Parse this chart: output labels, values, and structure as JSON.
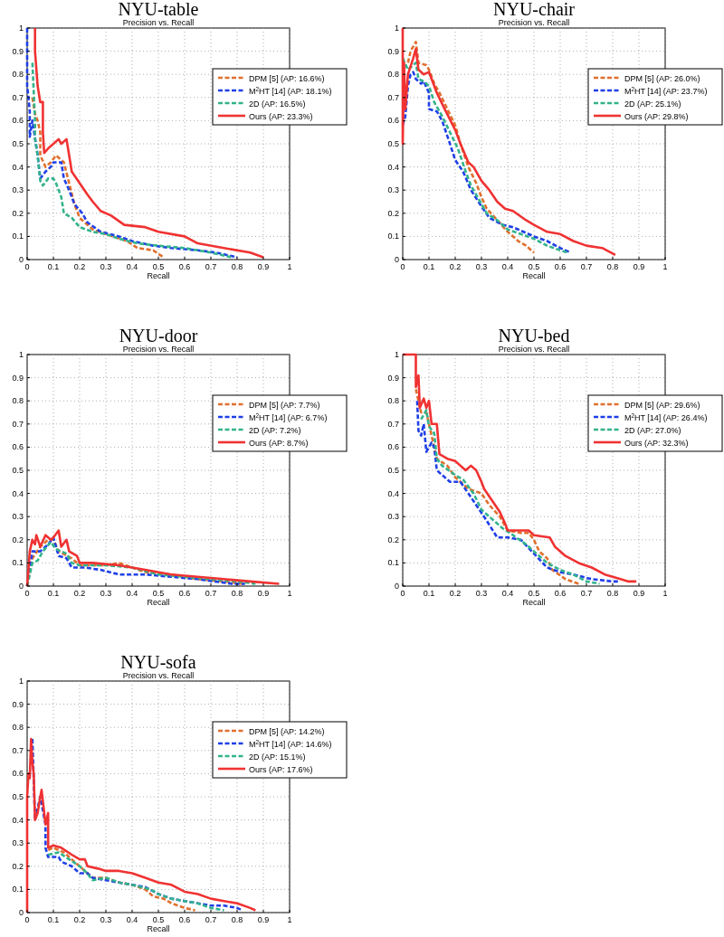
{
  "chart_data": [
    {
      "type": "line",
      "title": "NYU-table",
      "subtitle": "Precision vs. Recall",
      "xlabel": "Recall",
      "xlim": [
        0,
        1
      ],
      "ylim": [
        0,
        1
      ],
      "xticks": [
        0,
        0.1,
        0.2,
        0.3,
        0.4,
        0.5,
        0.6,
        0.7,
        0.8,
        0.9,
        1
      ],
      "yticks": [
        0,
        0.1,
        0.2,
        0.3,
        0.4,
        0.5,
        0.6,
        0.7,
        0.8,
        0.9,
        1
      ],
      "grid": true,
      "legend": "top right",
      "marker": "none",
      "series": [
        {
          "name": "DPM [5] (AP: 16.6%)",
          "color": "#e0702e",
          "line_style": "dashed",
          "x": [
            0.02,
            0.03,
            0.04,
            0.05,
            0.05,
            0.07,
            0.09,
            0.11,
            0.13,
            0.14,
            0.16,
            0.18,
            0.2,
            0.25,
            0.3,
            0.38,
            0.42,
            0.48,
            0.52
          ],
          "values": [
            0.7,
            0.63,
            0.6,
            0.55,
            0.45,
            0.4,
            0.42,
            0.45,
            0.43,
            0.42,
            0.33,
            0.24,
            0.18,
            0.13,
            0.11,
            0.08,
            0.05,
            0.04,
            0.01
          ]
        },
        {
          "name": "M$^{2}$HT [14] (AP: 18.1%)",
          "color": "#1f3fe6",
          "line_style": "dashed",
          "x": [
            0,
            0,
            0.005,
            0.01,
            0.01,
            0.02,
            0.04,
            0.05,
            0.07,
            0.09,
            0.1,
            0.13,
            0.14,
            0.16,
            0.18,
            0.21,
            0.23,
            0.28,
            0.35,
            0.4,
            0.48,
            0.55,
            0.65,
            0.72,
            0.8
          ],
          "values": [
            1,
            0.75,
            0.7,
            0.64,
            0.53,
            0.6,
            0.45,
            0.35,
            0.38,
            0.4,
            0.42,
            0.42,
            0.35,
            0.3,
            0.24,
            0.2,
            0.16,
            0.12,
            0.1,
            0.08,
            0.06,
            0.05,
            0.04,
            0.03,
            0.01
          ]
        },
        {
          "name": "2D (AP: 16.5%)",
          "color": "#33b38c",
          "line_style": "dashed",
          "x": [
            0.02,
            0.03,
            0.03,
            0.04,
            0.05,
            0.06,
            0.08,
            0.1,
            0.11,
            0.13,
            0.14,
            0.17,
            0.2,
            0.25,
            0.3,
            0.35,
            0.42,
            0.5,
            0.6,
            0.7,
            0.78
          ],
          "values": [
            0.85,
            0.6,
            0.52,
            0.45,
            0.34,
            0.32,
            0.35,
            0.35,
            0.33,
            0.27,
            0.2,
            0.18,
            0.14,
            0.12,
            0.11,
            0.09,
            0.07,
            0.06,
            0.05,
            0.03,
            0.01
          ]
        },
        {
          "name": "Ours (AP: 23.3%)",
          "color": "#f03232",
          "line_style": "solid",
          "x": [
            0.03,
            0.03,
            0.04,
            0.05,
            0.06,
            0.06,
            0.065,
            0.08,
            0.1,
            0.12,
            0.13,
            0.15,
            0.16,
            0.17,
            0.2,
            0.23,
            0.25,
            0.28,
            0.32,
            0.37,
            0.45,
            0.5,
            0.6,
            0.65,
            0.75,
            0.85,
            0.9
          ],
          "values": [
            1,
            0.9,
            0.75,
            0.68,
            0.68,
            0.55,
            0.46,
            0.48,
            0.5,
            0.52,
            0.5,
            0.52,
            0.45,
            0.38,
            0.33,
            0.28,
            0.25,
            0.21,
            0.19,
            0.15,
            0.14,
            0.12,
            0.1,
            0.07,
            0.05,
            0.03,
            0.01
          ]
        }
      ]
    },
    {
      "type": "line",
      "title": "NYU-chair",
      "subtitle": "Precision vs. Recall",
      "xlabel": "Recall",
      "xlim": [
        0,
        1
      ],
      "ylim": [
        0,
        1
      ],
      "xticks": [
        0,
        0.1,
        0.2,
        0.3,
        0.4,
        0.5,
        0.6,
        0.7,
        0.8,
        0.9,
        1
      ],
      "yticks": [
        0,
        0.1,
        0.2,
        0.3,
        0.4,
        0.5,
        0.6,
        0.7,
        0.8,
        0.9,
        1
      ],
      "grid": true,
      "legend": "top right",
      "marker": "none",
      "series": [
        {
          "name": "DPM [5] (AP: 26.0%)",
          "color": "#e0702e",
          "line_style": "dashed",
          "x": [
            0.02,
            0.03,
            0.05,
            0.06,
            0.09,
            0.1,
            0.12,
            0.14,
            0.17,
            0.2,
            0.22,
            0.25,
            0.28,
            0.3,
            0.32,
            0.36,
            0.4,
            0.44,
            0.47,
            0.5
          ],
          "values": [
            0.85,
            0.9,
            0.94,
            0.85,
            0.84,
            0.82,
            0.76,
            0.72,
            0.65,
            0.58,
            0.5,
            0.4,
            0.33,
            0.27,
            0.22,
            0.17,
            0.12,
            0.08,
            0.06,
            0.03
          ]
        },
        {
          "name": "M$^{2}$HT [14] (AP: 23.7%)",
          "color": "#1f3fe6",
          "line_style": "dashed",
          "x": [
            0,
            0.01,
            0.02,
            0.03,
            0.04,
            0.05,
            0.07,
            0.08,
            0.1,
            0.1,
            0.13,
            0.15,
            0.18,
            0.2,
            0.23,
            0.26,
            0.3,
            0.33,
            0.38,
            0.42,
            0.5,
            0.55,
            0.6,
            0.64
          ],
          "values": [
            0.58,
            0.62,
            0.75,
            0.8,
            0.81,
            0.78,
            0.76,
            0.77,
            0.72,
            0.65,
            0.64,
            0.6,
            0.5,
            0.43,
            0.38,
            0.3,
            0.23,
            0.18,
            0.15,
            0.14,
            0.1,
            0.08,
            0.05,
            0.03
          ]
        },
        {
          "name": "2D (AP: 25.1%)",
          "color": "#33b38c",
          "line_style": "dashed",
          "x": [
            0,
            0.02,
            0.04,
            0.05,
            0.06,
            0.08,
            0.1,
            0.12,
            0.15,
            0.18,
            0.21,
            0.24,
            0.26,
            0.29,
            0.32,
            0.36,
            0.4,
            0.45,
            0.5,
            0.55,
            0.6,
            0.63
          ],
          "values": [
            0.87,
            0.82,
            0.84,
            0.85,
            0.78,
            0.77,
            0.75,
            0.68,
            0.62,
            0.55,
            0.48,
            0.38,
            0.32,
            0.26,
            0.2,
            0.17,
            0.13,
            0.11,
            0.09,
            0.06,
            0.04,
            0.03
          ]
        },
        {
          "name": "Ours (AP: 29.8%)",
          "color": "#f03232",
          "line_style": "solid",
          "x": [
            0,
            0,
            0.005,
            0.01,
            0.02,
            0.04,
            0.05,
            0.06,
            0.08,
            0.1,
            0.11,
            0.13,
            0.16,
            0.2,
            0.22,
            0.25,
            0.27,
            0.3,
            0.33,
            0.36,
            0.39,
            0.42,
            0.47,
            0.5,
            0.55,
            0.6,
            0.65,
            0.7,
            0.76,
            0.81
          ],
          "values": [
            1,
            0.5,
            0.85,
            0.65,
            0.8,
            0.87,
            0.91,
            0.82,
            0.8,
            0.81,
            0.78,
            0.72,
            0.65,
            0.56,
            0.5,
            0.42,
            0.4,
            0.34,
            0.3,
            0.25,
            0.22,
            0.21,
            0.17,
            0.15,
            0.12,
            0.11,
            0.08,
            0.06,
            0.05,
            0.02
          ]
        }
      ]
    },
    {
      "type": "line",
      "title": "NYU-door",
      "subtitle": "Precision vs. Recall",
      "xlabel": "Recall",
      "xlim": [
        0,
        1
      ],
      "ylim": [
        0,
        1
      ],
      "xticks": [
        0,
        0.1,
        0.2,
        0.3,
        0.4,
        0.5,
        0.6,
        0.7,
        0.8,
        0.9,
        1
      ],
      "yticks": [
        0,
        0.1,
        0.2,
        0.3,
        0.4,
        0.5,
        0.6,
        0.7,
        0.8,
        0.9,
        1
      ],
      "grid": true,
      "legend": "top right",
      "marker": "none",
      "series": [
        {
          "name": "DPM [5] (AP: 7.7%)",
          "color": "#e0702e",
          "line_style": "dashed",
          "x": [
            0,
            0.02,
            0.05,
            0.08,
            0.1,
            0.12,
            0.17,
            0.2,
            0.3,
            0.35,
            0.45,
            0.55,
            0.65,
            0.75,
            0.82
          ],
          "values": [
            0,
            0.12,
            0.17,
            0.2,
            0.2,
            0.15,
            0.12,
            0.09,
            0.09,
            0.1,
            0.06,
            0.05,
            0.03,
            0.02,
            0.01
          ]
        },
        {
          "name": "M$^{2}$HT [14] (AP: 6.7%)",
          "color": "#1f3fe6",
          "line_style": "dashed",
          "x": [
            0,
            0.02,
            0.05,
            0.08,
            0.1,
            0.12,
            0.15,
            0.17,
            0.22,
            0.28,
            0.35,
            0.45,
            0.55,
            0.65,
            0.78,
            0.83
          ],
          "values": [
            0,
            0.15,
            0.15,
            0.18,
            0.21,
            0.13,
            0.12,
            0.08,
            0.08,
            0.07,
            0.05,
            0.05,
            0.04,
            0.03,
            0.01,
            0.01
          ]
        },
        {
          "name": "2D (AP: 7.2%)",
          "color": "#33b38c",
          "line_style": "dashed",
          "x": [
            0,
            0.02,
            0.04,
            0.06,
            0.09,
            0.11,
            0.15,
            0.17,
            0.2,
            0.3,
            0.4,
            0.5,
            0.6,
            0.7,
            0.8,
            0.87
          ],
          "values": [
            0,
            0.1,
            0.11,
            0.15,
            0.19,
            0.16,
            0.14,
            0.1,
            0.09,
            0.09,
            0.08,
            0.05,
            0.04,
            0.03,
            0.02,
            0.01
          ]
        },
        {
          "name": "Ours (AP: 8.7%)",
          "color": "#f03232",
          "line_style": "solid",
          "x": [
            0,
            0.01,
            0.02,
            0.03,
            0.035,
            0.05,
            0.07,
            0.09,
            0.1,
            0.12,
            0.13,
            0.15,
            0.16,
            0.19,
            0.2,
            0.25,
            0.35,
            0.45,
            0.55,
            0.65,
            0.75,
            0.85,
            0.96
          ],
          "values": [
            0,
            0.15,
            0.2,
            0.18,
            0.22,
            0.17,
            0.22,
            0.2,
            0.21,
            0.24,
            0.17,
            0.2,
            0.15,
            0.13,
            0.1,
            0.1,
            0.09,
            0.07,
            0.05,
            0.04,
            0.03,
            0.02,
            0.01
          ]
        }
      ]
    },
    {
      "type": "line",
      "title": "NYU-bed",
      "subtitle": "Precision vs. Recall",
      "xlabel": "Recall",
      "xlim": [
        0,
        1
      ],
      "ylim": [
        0,
        1
      ],
      "xticks": [
        0,
        0.1,
        0.2,
        0.3,
        0.4,
        0.5,
        0.6,
        0.7,
        0.8,
        0.9,
        1
      ],
      "yticks": [
        0,
        0.1,
        0.2,
        0.3,
        0.4,
        0.5,
        0.6,
        0.7,
        0.8,
        0.9,
        1
      ],
      "grid": true,
      "legend": "top right",
      "marker": "none",
      "series": [
        {
          "name": "DPM [5] (AP: 29.6%)",
          "color": "#e0702e",
          "line_style": "dashed",
          "x": [
            0.05,
            0.07,
            0.09,
            0.11,
            0.13,
            0.17,
            0.2,
            0.25,
            0.3,
            0.33,
            0.37,
            0.4,
            0.45,
            0.48,
            0.5,
            0.52,
            0.55,
            0.57,
            0.62,
            0.67
          ],
          "values": [
            0.85,
            0.75,
            0.75,
            0.65,
            0.55,
            0.52,
            0.47,
            0.42,
            0.4,
            0.35,
            0.3,
            0.24,
            0.23,
            0.23,
            0.2,
            0.15,
            0.12,
            0.07,
            0.03,
            0.01
          ]
        },
        {
          "name": "M$^{2}$HT [14] (AP: 26.4%)",
          "color": "#1f3fe6",
          "line_style": "dashed",
          "x": [
            0.055,
            0.06,
            0.07,
            0.08,
            0.09,
            0.11,
            0.12,
            0.13,
            0.15,
            0.18,
            0.22,
            0.25,
            0.28,
            0.31,
            0.36,
            0.4,
            0.45,
            0.5,
            0.55,
            0.6,
            0.65,
            0.72,
            0.8,
            0.82
          ],
          "values": [
            0.8,
            0.67,
            0.65,
            0.7,
            0.58,
            0.62,
            0.6,
            0.5,
            0.48,
            0.45,
            0.45,
            0.4,
            0.35,
            0.3,
            0.21,
            0.21,
            0.2,
            0.14,
            0.08,
            0.06,
            0.05,
            0.03,
            0.02,
            0.02
          ]
        },
        {
          "name": "2D (AP: 27.0%)",
          "color": "#33b38c",
          "line_style": "dashed",
          "x": [
            0.07,
            0.09,
            0.1,
            0.12,
            0.13,
            0.15,
            0.2,
            0.23,
            0.27,
            0.3,
            0.33,
            0.38,
            0.42,
            0.47,
            0.5,
            0.55,
            0.6,
            0.65,
            0.7,
            0.75
          ],
          "values": [
            0.72,
            0.76,
            0.69,
            0.66,
            0.55,
            0.52,
            0.48,
            0.46,
            0.4,
            0.33,
            0.3,
            0.25,
            0.22,
            0.18,
            0.15,
            0.1,
            0.07,
            0.05,
            0.02,
            0.01
          ]
        },
        {
          "name": "Ours (AP: 32.3%)",
          "color": "#f03232",
          "line_style": "solid",
          "x": [
            0,
            0.05,
            0.05,
            0.06,
            0.065,
            0.08,
            0.09,
            0.1,
            0.11,
            0.13,
            0.14,
            0.17,
            0.2,
            0.22,
            0.24,
            0.26,
            0.28,
            0.3,
            0.31,
            0.34,
            0.37,
            0.39,
            0.4,
            0.43,
            0.48,
            0.5,
            0.56,
            0.58,
            0.62,
            0.67,
            0.72,
            0.77,
            0.83,
            0.86,
            0.89
          ],
          "values": [
            1,
            1,
            0.86,
            0.91,
            0.77,
            0.81,
            0.77,
            0.8,
            0.7,
            0.7,
            0.57,
            0.55,
            0.54,
            0.52,
            0.5,
            0.52,
            0.5,
            0.45,
            0.42,
            0.37,
            0.32,
            0.27,
            0.24,
            0.24,
            0.24,
            0.22,
            0.21,
            0.17,
            0.13,
            0.1,
            0.08,
            0.05,
            0.03,
            0.02,
            0.02
          ]
        }
      ]
    },
    {
      "type": "line",
      "title": "NYU-sofa",
      "subtitle": "Precision vs. Recall",
      "xlabel": "Recall",
      "xlim": [
        0,
        1
      ],
      "ylim": [
        0,
        1
      ],
      "xticks": [
        0,
        0.1,
        0.2,
        0.3,
        0.4,
        0.5,
        0.6,
        0.7,
        0.8,
        0.9,
        1
      ],
      "yticks": [
        0,
        0.1,
        0.2,
        0.3,
        0.4,
        0.5,
        0.6,
        0.7,
        0.8,
        0.9,
        1
      ],
      "grid": true,
      "legend": "top right",
      "marker": "none",
      "series": [
        {
          "name": "DPM [5] (AP: 14.2%)",
          "color": "#e0702e",
          "line_style": "dashed",
          "x": [
            0.08,
            0.1,
            0.14,
            0.18,
            0.2,
            0.22,
            0.25,
            0.3,
            0.35,
            0.4,
            0.45,
            0.48,
            0.52,
            0.55,
            0.6,
            0.64
          ],
          "values": [
            0.27,
            0.28,
            0.26,
            0.22,
            0.2,
            0.18,
            0.15,
            0.15,
            0.13,
            0.12,
            0.1,
            0.07,
            0.06,
            0.04,
            0.02,
            0.01
          ]
        },
        {
          "name": "M$^{2}$HT [14] (AP: 14.6%)",
          "color": "#1f3fe6",
          "line_style": "dashed",
          "x": [
            0.02,
            0.03,
            0.05,
            0.07,
            0.07,
            0.08,
            0.12,
            0.13,
            0.17,
            0.2,
            0.23,
            0.25,
            0.3,
            0.35,
            0.4,
            0.45,
            0.5,
            0.55,
            0.6,
            0.65,
            0.7,
            0.75,
            0.8,
            0.82
          ],
          "values": [
            0.75,
            0.4,
            0.5,
            0.38,
            0.28,
            0.24,
            0.24,
            0.22,
            0.2,
            0.17,
            0.17,
            0.15,
            0.14,
            0.13,
            0.12,
            0.11,
            0.08,
            0.06,
            0.05,
            0.04,
            0.03,
            0.03,
            0.02,
            0.01
          ]
        },
        {
          "name": "2D (AP: 15.1%)",
          "color": "#33b38c",
          "line_style": "dashed",
          "x": [
            0.08,
            0.12,
            0.16,
            0.2,
            0.22,
            0.25,
            0.3,
            0.35,
            0.4,
            0.47,
            0.5,
            0.55,
            0.6,
            0.65,
            0.7,
            0.75
          ],
          "values": [
            0.25,
            0.26,
            0.23,
            0.2,
            0.18,
            0.14,
            0.15,
            0.13,
            0.12,
            0.1,
            0.08,
            0.06,
            0.05,
            0.04,
            0.02,
            0.01
          ]
        },
        {
          "name": "Ours (AP: 17.6%)",
          "color": "#f03232",
          "line_style": "solid",
          "x": [
            0,
            0,
            0.005,
            0.01,
            0.015,
            0.02,
            0.025,
            0.03,
            0.04,
            0.05,
            0.055,
            0.06,
            0.07,
            0.08,
            0.08,
            0.1,
            0.13,
            0.17,
            0.2,
            0.22,
            0.23,
            0.27,
            0.3,
            0.35,
            0.4,
            0.45,
            0.5,
            0.55,
            0.6,
            0.65,
            0.7,
            0.75,
            0.8,
            0.85,
            0.87
          ],
          "values": [
            0,
            0.5,
            0.6,
            0.58,
            0.75,
            0.65,
            0.6,
            0.4,
            0.43,
            0.5,
            0.53,
            0.48,
            0.38,
            0.43,
            0.28,
            0.29,
            0.28,
            0.25,
            0.23,
            0.23,
            0.2,
            0.19,
            0.18,
            0.18,
            0.17,
            0.15,
            0.13,
            0.12,
            0.09,
            0.08,
            0.06,
            0.05,
            0.04,
            0.02,
            0.01
          ]
        }
      ]
    }
  ]
}
